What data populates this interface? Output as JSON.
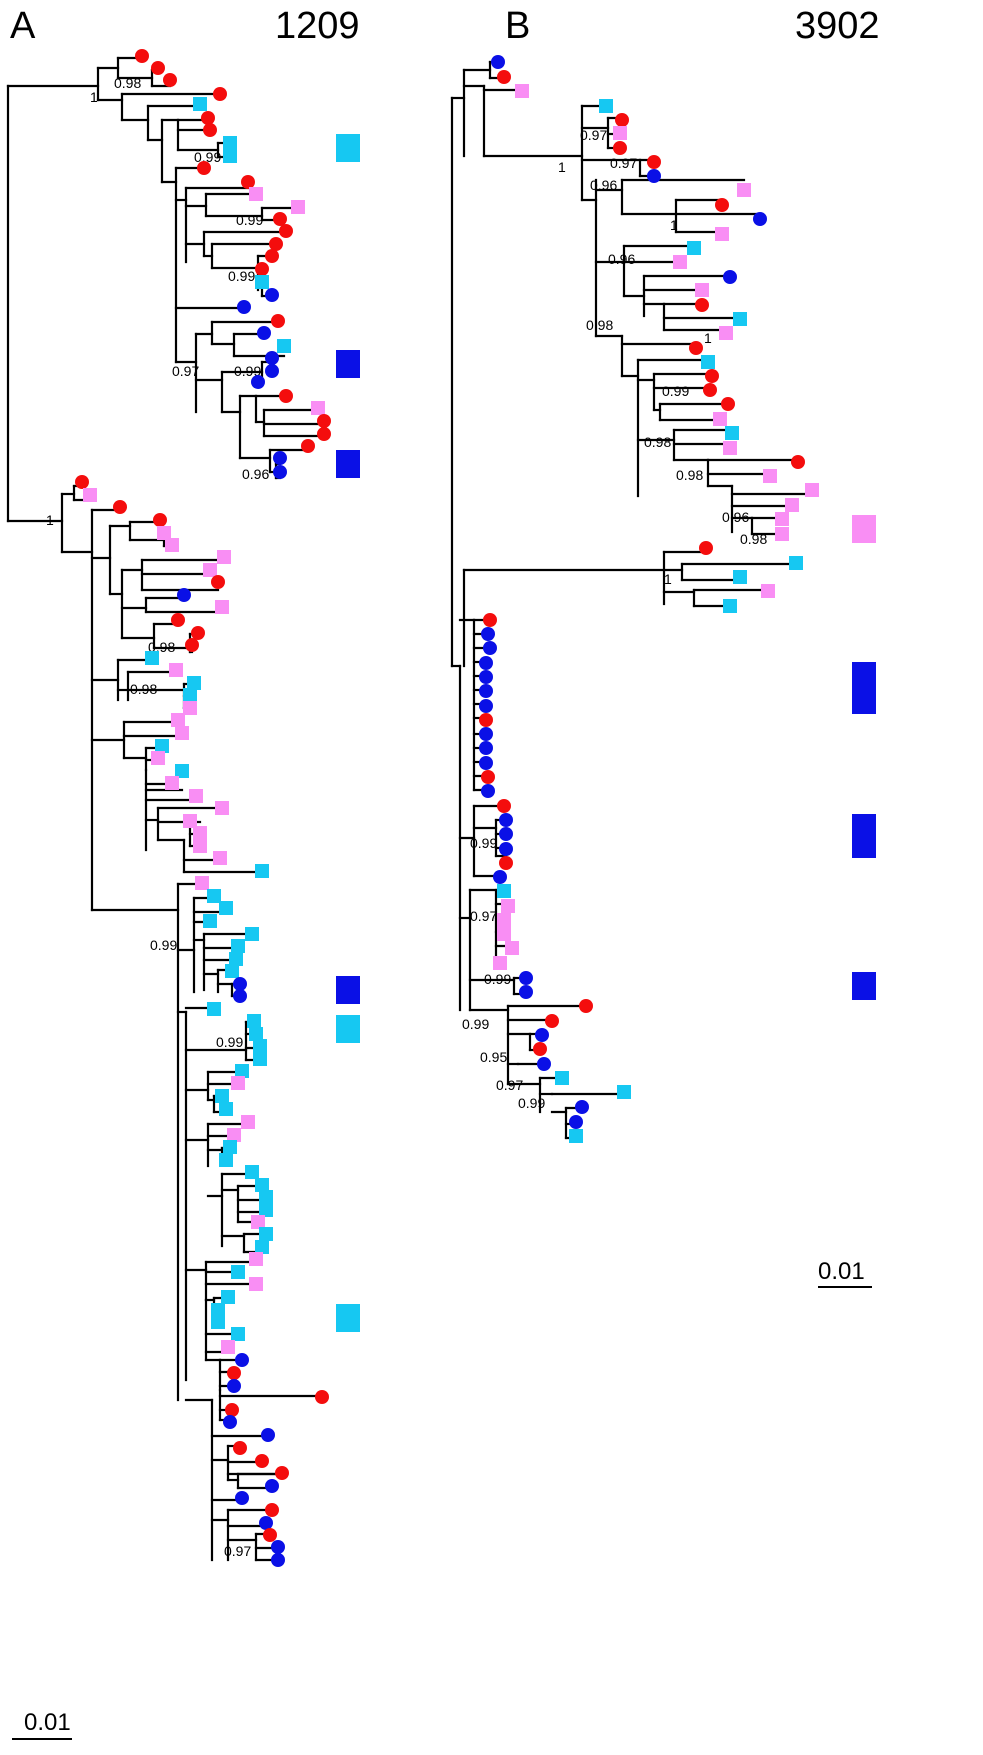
{
  "colors": {
    "red": "#f40d0d",
    "blue": "#0a10e6",
    "cyan": "#16c8f2",
    "pink": "#f98ef4",
    "line": "#000000"
  },
  "legend_shapes": {
    "circle": "circle-marker",
    "square": "square-marker"
  },
  "panels": [
    {
      "letter": "A",
      "title": "1209",
      "scale_label": "0.01",
      "support_values": [
        "0.98",
        "1",
        "0.99",
        "0.99",
        "0.99",
        "0.97",
        "0.99",
        "0.96",
        "1",
        "0.98",
        "0.98",
        "0.99",
        "0.99",
        "0.97"
      ],
      "clade_marker_colors": [
        "cyan",
        "blue",
        "blue",
        "blue",
        "cyan",
        "cyan"
      ]
    },
    {
      "letter": "B",
      "title": "3902",
      "scale_label": "0.01",
      "support_values": [
        "0.97",
        "0.97",
        "1",
        "0.96",
        "1",
        "0.96",
        "1",
        "0.98",
        "0.99",
        "0.98",
        "0.98",
        "0.96",
        "0.98",
        "1",
        "0.99",
        "0.97",
        "0.99",
        "0.99",
        "0.95",
        "0.97",
        "0.99"
      ],
      "clade_marker_colors": [
        "pink",
        "blue",
        "blue",
        "blue"
      ]
    }
  ]
}
